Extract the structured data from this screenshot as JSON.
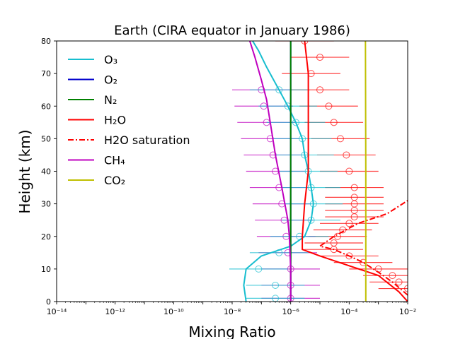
{
  "chart_data": {
    "type": "line",
    "title": "Earth (CIRA equator in January 1986)",
    "xlabel": "Mixing Ratio",
    "ylabel": "Height (km)",
    "xscale": "log",
    "xlim": [
      1e-14,
      0.01
    ],
    "ylim": [
      0,
      80
    ],
    "x_tick_labels": [
      "10⁻¹⁴",
      "10⁻¹²",
      "10⁻¹⁰",
      "10⁻⁸",
      "10⁻⁶",
      "10⁻⁴",
      "10⁻²"
    ],
    "y_tick_labels": [
      "0",
      "10",
      "20",
      "30",
      "40",
      "50",
      "60",
      "70",
      "80"
    ],
    "grid": false,
    "legend_position": "upper-left",
    "series": [
      {
        "name": "O₃",
        "color": "#17becf",
        "style": "solid",
        "points": [
          [
            3e-08,
            0
          ],
          [
            2.5e-08,
            5
          ],
          [
            3e-08,
            10
          ],
          [
            1e-07,
            14
          ],
          [
            1e-06,
            17
          ],
          [
            3e-06,
            20
          ],
          [
            5e-06,
            25
          ],
          [
            6e-06,
            30
          ],
          [
            5e-06,
            35
          ],
          [
            4e-06,
            40
          ],
          [
            3e-06,
            45
          ],
          [
            2.5e-06,
            50
          ],
          [
            1.5e-06,
            55
          ],
          [
            8e-07,
            60
          ],
          [
            4e-07,
            65
          ],
          [
            1.5e-07,
            72
          ],
          [
            8e-08,
            77
          ],
          [
            5e-08,
            80
          ]
        ]
      },
      {
        "name": "O₂",
        "color": "#0000cc",
        "style": "solid",
        "points": [
          [
            1e-06,
            0
          ],
          [
            1e-06,
            80
          ]
        ]
      },
      {
        "name": "N₂",
        "color": "#008000",
        "style": "solid",
        "points": [
          [
            1e-06,
            0
          ],
          [
            1e-06,
            80
          ]
        ]
      },
      {
        "name": "H₂O",
        "color": "#ff0000",
        "style": "solid",
        "points": [
          [
            0.01,
            0
          ],
          [
            0.005,
            3
          ],
          [
            0.001,
            8
          ],
          [
            0.0001,
            11
          ],
          [
            1e-05,
            14
          ],
          [
            2.5e-06,
            16
          ],
          [
            2.5e-06,
            20
          ],
          [
            3e-06,
            30
          ],
          [
            4e-06,
            40
          ],
          [
            4e-06,
            50
          ],
          [
            4e-06,
            60
          ],
          [
            4e-06,
            70
          ],
          [
            3e-06,
            80
          ]
        ]
      },
      {
        "name": "H2O saturation",
        "color": "#ff0000",
        "style": "dashdot",
        "points": [
          [
            0.01,
            2
          ],
          [
            0.003,
            6
          ],
          [
            0.001,
            9
          ],
          [
            0.0003,
            12
          ],
          [
            0.0001,
            14
          ],
          [
            3e-05,
            16
          ],
          [
            1e-05,
            17
          ],
          [
            3e-05,
            20
          ],
          [
            0.0002,
            24
          ],
          [
            0.002,
            27
          ],
          [
            0.01,
            31
          ]
        ]
      },
      {
        "name": "CH₄",
        "color": "#bf00bf",
        "style": "solid",
        "points": [
          [
            1e-06,
            0
          ],
          [
            1e-06,
            10
          ],
          [
            9e-07,
            20
          ],
          [
            8e-07,
            25
          ],
          [
            5e-07,
            35
          ],
          [
            3e-07,
            45
          ],
          [
            2e-07,
            55
          ],
          [
            1.5e-07,
            62
          ],
          [
            1e-07,
            68
          ],
          [
            6e-08,
            75
          ],
          [
            4e-08,
            80
          ]
        ]
      },
      {
        "name": "CO₂",
        "color": "#bfbf00",
        "style": "solid",
        "points": [
          [
            0.00037,
            0
          ],
          [
            0.00037,
            40
          ],
          [
            0.00036,
            80
          ]
        ]
      }
    ],
    "measurements": [
      {
        "name": "H2O obs",
        "color": "#ff0000",
        "points": [
          [
            0.01,
            4
          ],
          [
            0.005,
            6
          ],
          [
            0.003,
            8
          ],
          [
            0.001,
            10
          ],
          [
            0.0003,
            12
          ],
          [
            0.0001,
            14
          ],
          [
            3e-05,
            16
          ],
          [
            3e-05,
            18
          ],
          [
            4e-05,
            20
          ],
          [
            6e-05,
            22
          ],
          [
            0.0001,
            24
          ],
          [
            0.00015,
            26
          ],
          [
            0.00015,
            28
          ],
          [
            0.00015,
            30
          ],
          [
            0.00015,
            32
          ],
          [
            0.00015,
            35
          ],
          [
            0.0001,
            40
          ],
          [
            8e-05,
            45
          ],
          [
            5e-05,
            50
          ],
          [
            3e-05,
            55
          ],
          [
            2e-05,
            60
          ],
          [
            1e-05,
            65
          ],
          [
            5e-06,
            70
          ],
          [
            1e-05,
            75
          ],
          [
            3e-06,
            80
          ]
        ]
      },
      {
        "name": "CH4 obs",
        "color": "#bf00bf",
        "points": [
          [
            1e-06,
            1
          ],
          [
            1e-06,
            5
          ],
          [
            1e-06,
            10
          ],
          [
            8e-07,
            15
          ],
          [
            7e-07,
            20
          ],
          [
            6e-07,
            25
          ],
          [
            5e-07,
            30
          ],
          [
            4e-07,
            35
          ],
          [
            3e-07,
            40
          ],
          [
            2.5e-07,
            45
          ],
          [
            2e-07,
            50
          ],
          [
            1.5e-07,
            55
          ],
          [
            1.2e-07,
            60
          ],
          [
            1e-07,
            65
          ]
        ]
      },
      {
        "name": "O3 obs",
        "color": "#17becf",
        "points": [
          [
            3e-07,
            1
          ],
          [
            3e-07,
            5
          ],
          [
            8e-08,
            10
          ],
          [
            4e-07,
            15
          ],
          [
            2e-06,
            20
          ],
          [
            5e-06,
            25
          ],
          [
            6e-06,
            30
          ],
          [
            5e-06,
            35
          ],
          [
            4e-06,
            40
          ],
          [
            3e-06,
            45
          ],
          [
            2.5e-06,
            50
          ],
          [
            1.5e-06,
            55
          ],
          [
            8e-07,
            60
          ],
          [
            4e-07,
            65
          ]
        ]
      }
    ]
  }
}
